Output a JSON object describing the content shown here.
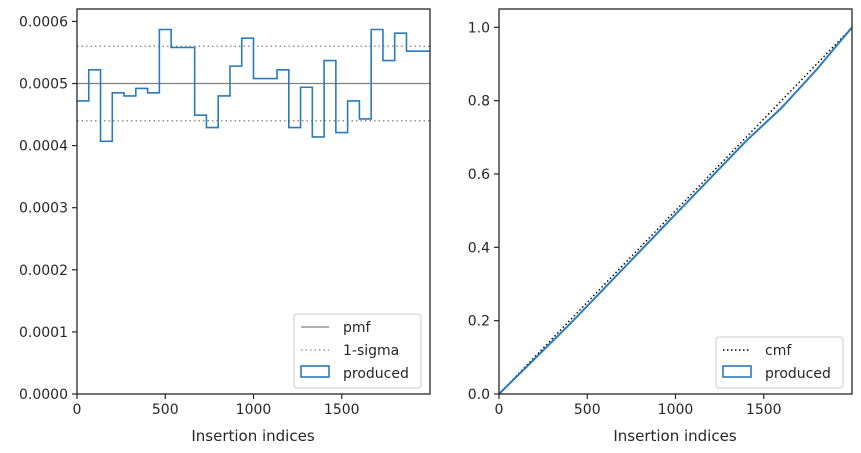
{
  "chart_data": [
    {
      "type": "step",
      "xlabel": "Insertion indices",
      "ylabel": "",
      "xlim": [
        0,
        2000
      ],
      "ylim": [
        0,
        0.00062
      ],
      "x_ticks": [
        0,
        500,
        1000,
        1500
      ],
      "x_tick_labels": [
        "0",
        "500",
        "1000",
        "1500"
      ],
      "y_ticks": [
        0,
        0.0001,
        0.0002,
        0.0003,
        0.0004,
        0.0005,
        0.0006
      ],
      "y_tick_labels": [
        "0.0000",
        "0.0001",
        "0.0002",
        "0.0003",
        "0.0004",
        "0.0005",
        "0.0006"
      ],
      "legend_position": "lower-right",
      "pmf": 0.0005,
      "sigma_lines": [
        0.00044,
        0.00056
      ],
      "histogram": {
        "bin_width": 66.67,
        "bin_starts": [
          0,
          66.67,
          133.33,
          200,
          266.67,
          333.33,
          400,
          466.67,
          533.33,
          600,
          666.67,
          733.33,
          800,
          866.67,
          933.33,
          1000,
          1066.67,
          1133.33,
          1200,
          1266.67,
          1333.33,
          1400,
          1466.67,
          1533.33,
          1600,
          1666.67,
          1733.33,
          1800,
          1866.67,
          1933.33
        ],
        "values": [
          0.000472,
          0.000522,
          0.000407,
          0.000485,
          0.00048,
          0.000492,
          0.000485,
          0.000587,
          0.000558,
          0.000558,
          0.000449,
          0.000429,
          0.00048,
          0.000528,
          0.000573,
          0.000508,
          0.000508,
          0.000522,
          0.000429,
          0.000494,
          0.000414,
          0.000537,
          0.000421,
          0.000472,
          0.000443,
          0.000587,
          0.000537,
          0.000581,
          0.000552,
          0.000552
        ]
      },
      "legend": [
        {
          "label": "pmf",
          "style": "solid",
          "color": "#808080"
        },
        {
          "label": "1-sigma",
          "style": "dotted",
          "color": "#808080"
        },
        {
          "label": "produced",
          "style": "step",
          "color": "#1f77b4"
        }
      ]
    },
    {
      "type": "line",
      "xlabel": "Insertion indices",
      "ylabel": "",
      "xlim": [
        0,
        2000
      ],
      "ylim": [
        0,
        1.05
      ],
      "x_ticks": [
        0,
        500,
        1000,
        1500
      ],
      "x_tick_labels": [
        "0",
        "500",
        "1000",
        "1500"
      ],
      "y_ticks": [
        0,
        0.2,
        0.4,
        0.6,
        0.8,
        1.0
      ],
      "y_tick_labels": [
        "0.0",
        "0.2",
        "0.4",
        "0.6",
        "0.8",
        "1.0"
      ],
      "legend_position": "lower-right",
      "cmf": {
        "x": [
          0,
          2000
        ],
        "y": [
          0,
          1.0
        ]
      },
      "produced": {
        "x": [
          0,
          200,
          400,
          600,
          800,
          1000,
          1200,
          1400,
          1600,
          1800,
          2000
        ],
        "y": [
          0,
          0.095,
          0.19,
          0.29,
          0.39,
          0.49,
          0.59,
          0.69,
          0.78,
          0.885,
          1.0
        ]
      },
      "legend": [
        {
          "label": "cmf",
          "style": "dotted",
          "color": "#000000"
        },
        {
          "label": "produced",
          "style": "step",
          "color": "#1f77b4"
        }
      ]
    }
  ]
}
